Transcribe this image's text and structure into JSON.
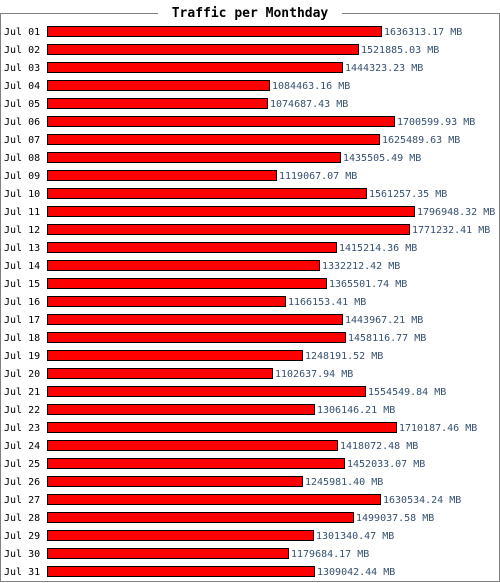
{
  "chart_data": {
    "type": "bar",
    "orientation": "horizontal",
    "title": "Traffic per Monthday",
    "unit": "MB",
    "bar_color": "#ff0000",
    "bar_border_color": "#000000",
    "label_color": "#35506e",
    "categories": [
      "Jul 01",
      "Jul 02",
      "Jul 03",
      "Jul 04",
      "Jul 05",
      "Jul 06",
      "Jul 07",
      "Jul 08",
      "Jul 09",
      "Jul 10",
      "Jul 11",
      "Jul 12",
      "Jul 13",
      "Jul 14",
      "Jul 15",
      "Jul 16",
      "Jul 17",
      "Jul 18",
      "Jul 19",
      "Jul 20",
      "Jul 21",
      "Jul 22",
      "Jul 23",
      "Jul 24",
      "Jul 25",
      "Jul 26",
      "Jul 27",
      "Jul 28",
      "Jul 29",
      "Jul 30",
      "Jul 31"
    ],
    "values": [
      1636313.17,
      1521885.03,
      1444323.23,
      1084463.16,
      1074687.43,
      1700599.93,
      1625489.63,
      1435505.49,
      1119067.07,
      1561257.35,
      1796948.32,
      1771232.41,
      1415214.36,
      1332212.42,
      1365501.74,
      1166153.41,
      1443967.21,
      1458116.77,
      1248191.52,
      1102637.94,
      1554549.84,
      1306146.21,
      1710187.46,
      1418072.48,
      1452033.07,
      1245981.4,
      1630534.24,
      1499037.58,
      1301340.47,
      1179684.17,
      1309042.44
    ],
    "value_labels": [
      "1636313.17 MB",
      "1521885.03 MB",
      "1444323.23 MB",
      "1084463.16 MB",
      "1074687.43 MB",
      "1700599.93 MB",
      "1625489.63 MB",
      "1435505.49 MB",
      "1119067.07 MB",
      "1561257.35 MB",
      "1796948.32 MB",
      "1771232.41 MB",
      "1415214.36 MB",
      "1332212.42 MB",
      "1365501.74 MB",
      "1166153.41 MB",
      "1443967.21 MB",
      "1458116.77 MB",
      "1248191.52 MB",
      "1102637.94 MB",
      "1554549.84 MB",
      "1306146.21 MB",
      "1710187.46 MB",
      "1418072.48 MB",
      "1452033.07 MB",
      "1245981.40 MB",
      "1630534.24 MB",
      "1499037.58 MB",
      "1301340.47 MB",
      "1179684.17 MB",
      "1309042.44 MB"
    ],
    "legend": false,
    "grid": false
  }
}
